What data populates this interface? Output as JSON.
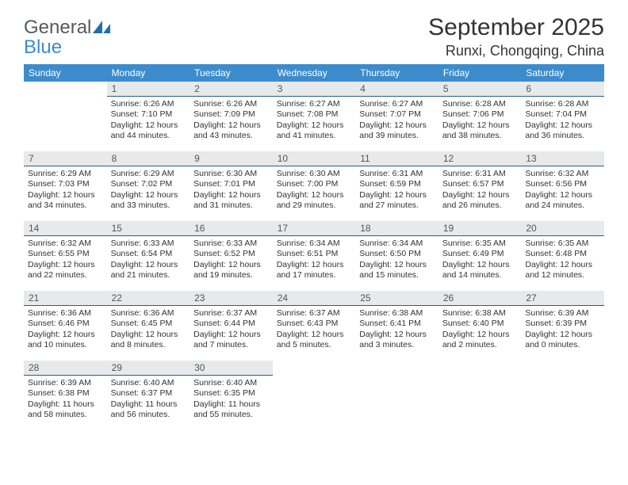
{
  "logo": {
    "part1": "General",
    "part2": "Blue"
  },
  "title": "September 2025",
  "location": "Runxi, Chongqing, China",
  "weekday_headers": [
    "Sunday",
    "Monday",
    "Tuesday",
    "Wednesday",
    "Thursday",
    "Friday",
    "Saturday"
  ],
  "header_bg": "#3c8ccc",
  "daynum_bg": "#e8e9ea",
  "daynum_border": "#2d5d85",
  "text_color": "#333333",
  "content_fontsize": 10.5,
  "weeks": [
    [
      {
        "num": "",
        "lines": []
      },
      {
        "num": "1",
        "lines": [
          "Sunrise: 6:26 AM",
          "Sunset: 7:10 PM",
          "Daylight: 12 hours and 44 minutes."
        ]
      },
      {
        "num": "2",
        "lines": [
          "Sunrise: 6:26 AM",
          "Sunset: 7:09 PM",
          "Daylight: 12 hours and 43 minutes."
        ]
      },
      {
        "num": "3",
        "lines": [
          "Sunrise: 6:27 AM",
          "Sunset: 7:08 PM",
          "Daylight: 12 hours and 41 minutes."
        ]
      },
      {
        "num": "4",
        "lines": [
          "Sunrise: 6:27 AM",
          "Sunset: 7:07 PM",
          "Daylight: 12 hours and 39 minutes."
        ]
      },
      {
        "num": "5",
        "lines": [
          "Sunrise: 6:28 AM",
          "Sunset: 7:06 PM",
          "Daylight: 12 hours and 38 minutes."
        ]
      },
      {
        "num": "6",
        "lines": [
          "Sunrise: 6:28 AM",
          "Sunset: 7:04 PM",
          "Daylight: 12 hours and 36 minutes."
        ]
      }
    ],
    [
      {
        "num": "7",
        "lines": [
          "Sunrise: 6:29 AM",
          "Sunset: 7:03 PM",
          "Daylight: 12 hours and 34 minutes."
        ]
      },
      {
        "num": "8",
        "lines": [
          "Sunrise: 6:29 AM",
          "Sunset: 7:02 PM",
          "Daylight: 12 hours and 33 minutes."
        ]
      },
      {
        "num": "9",
        "lines": [
          "Sunrise: 6:30 AM",
          "Sunset: 7:01 PM",
          "Daylight: 12 hours and 31 minutes."
        ]
      },
      {
        "num": "10",
        "lines": [
          "Sunrise: 6:30 AM",
          "Sunset: 7:00 PM",
          "Daylight: 12 hours and 29 minutes."
        ]
      },
      {
        "num": "11",
        "lines": [
          "Sunrise: 6:31 AM",
          "Sunset: 6:59 PM",
          "Daylight: 12 hours and 27 minutes."
        ]
      },
      {
        "num": "12",
        "lines": [
          "Sunrise: 6:31 AM",
          "Sunset: 6:57 PM",
          "Daylight: 12 hours and 26 minutes."
        ]
      },
      {
        "num": "13",
        "lines": [
          "Sunrise: 6:32 AM",
          "Sunset: 6:56 PM",
          "Daylight: 12 hours and 24 minutes."
        ]
      }
    ],
    [
      {
        "num": "14",
        "lines": [
          "Sunrise: 6:32 AM",
          "Sunset: 6:55 PM",
          "Daylight: 12 hours and 22 minutes."
        ]
      },
      {
        "num": "15",
        "lines": [
          "Sunrise: 6:33 AM",
          "Sunset: 6:54 PM",
          "Daylight: 12 hours and 21 minutes."
        ]
      },
      {
        "num": "16",
        "lines": [
          "Sunrise: 6:33 AM",
          "Sunset: 6:52 PM",
          "Daylight: 12 hours and 19 minutes."
        ]
      },
      {
        "num": "17",
        "lines": [
          "Sunrise: 6:34 AM",
          "Sunset: 6:51 PM",
          "Daylight: 12 hours and 17 minutes."
        ]
      },
      {
        "num": "18",
        "lines": [
          "Sunrise: 6:34 AM",
          "Sunset: 6:50 PM",
          "Daylight: 12 hours and 15 minutes."
        ]
      },
      {
        "num": "19",
        "lines": [
          "Sunrise: 6:35 AM",
          "Sunset: 6:49 PM",
          "Daylight: 12 hours and 14 minutes."
        ]
      },
      {
        "num": "20",
        "lines": [
          "Sunrise: 6:35 AM",
          "Sunset: 6:48 PM",
          "Daylight: 12 hours and 12 minutes."
        ]
      }
    ],
    [
      {
        "num": "21",
        "lines": [
          "Sunrise: 6:36 AM",
          "Sunset: 6:46 PM",
          "Daylight: 12 hours and 10 minutes."
        ]
      },
      {
        "num": "22",
        "lines": [
          "Sunrise: 6:36 AM",
          "Sunset: 6:45 PM",
          "Daylight: 12 hours and 8 minutes."
        ]
      },
      {
        "num": "23",
        "lines": [
          "Sunrise: 6:37 AM",
          "Sunset: 6:44 PM",
          "Daylight: 12 hours and 7 minutes."
        ]
      },
      {
        "num": "24",
        "lines": [
          "Sunrise: 6:37 AM",
          "Sunset: 6:43 PM",
          "Daylight: 12 hours and 5 minutes."
        ]
      },
      {
        "num": "25",
        "lines": [
          "Sunrise: 6:38 AM",
          "Sunset: 6:41 PM",
          "Daylight: 12 hours and 3 minutes."
        ]
      },
      {
        "num": "26",
        "lines": [
          "Sunrise: 6:38 AM",
          "Sunset: 6:40 PM",
          "Daylight: 12 hours and 2 minutes."
        ]
      },
      {
        "num": "27",
        "lines": [
          "Sunrise: 6:39 AM",
          "Sunset: 6:39 PM",
          "Daylight: 12 hours and 0 minutes."
        ]
      }
    ],
    [
      {
        "num": "28",
        "lines": [
          "Sunrise: 6:39 AM",
          "Sunset: 6:38 PM",
          "Daylight: 11 hours and 58 minutes."
        ]
      },
      {
        "num": "29",
        "lines": [
          "Sunrise: 6:40 AM",
          "Sunset: 6:37 PM",
          "Daylight: 11 hours and 56 minutes."
        ]
      },
      {
        "num": "30",
        "lines": [
          "Sunrise: 6:40 AM",
          "Sunset: 6:35 PM",
          "Daylight: 11 hours and 55 minutes."
        ]
      },
      {
        "num": "",
        "lines": []
      },
      {
        "num": "",
        "lines": []
      },
      {
        "num": "",
        "lines": []
      },
      {
        "num": "",
        "lines": []
      }
    ]
  ]
}
